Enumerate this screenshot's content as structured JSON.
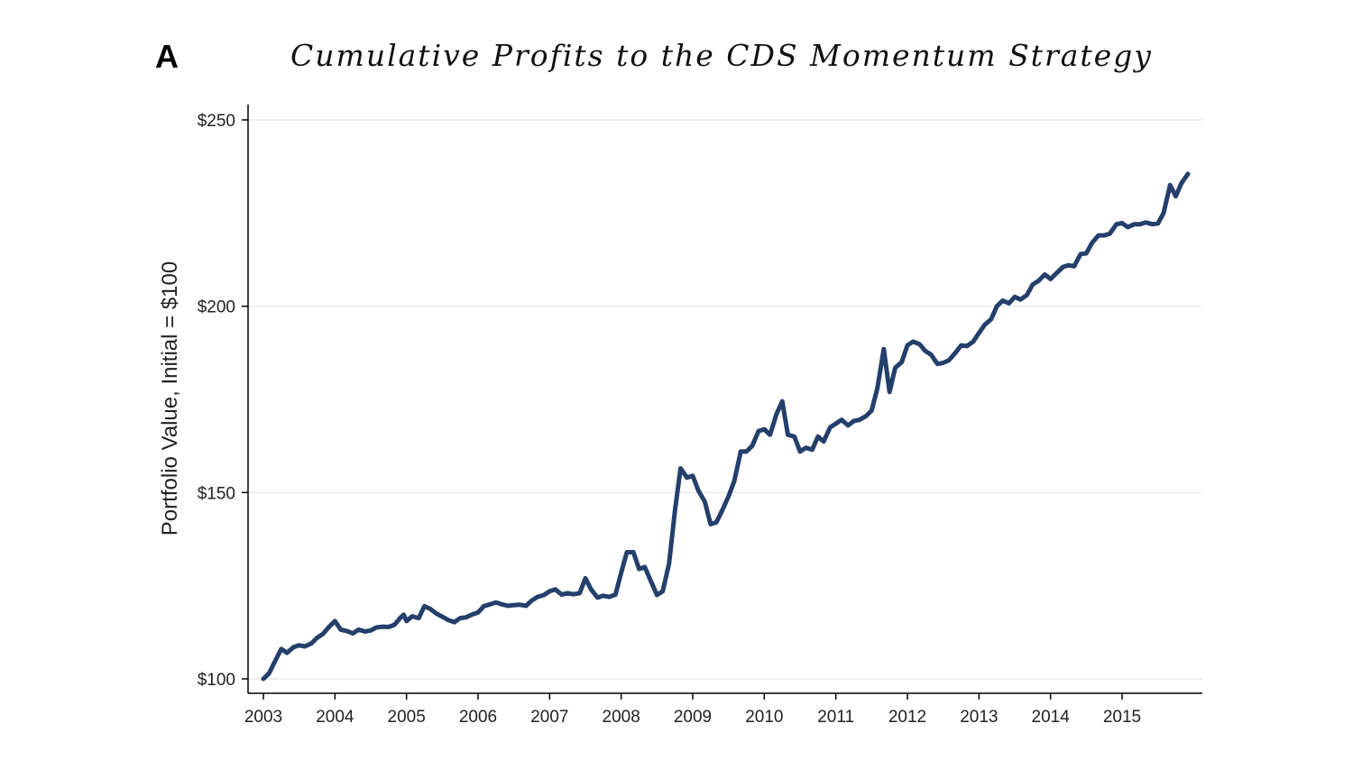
{
  "panel_letter": "A",
  "chart_data": {
    "type": "line",
    "title": "Cumulative Profits to the CDS Momentum Strategy",
    "xlabel": "",
    "ylabel": "Portfolio Value, Initial = $100",
    "xlim": [
      2003,
      2016.15
    ],
    "ylim": [
      96,
      254
    ],
    "x_ticks": [
      {
        "value": 2003,
        "label": "2003"
      },
      {
        "value": 2004,
        "label": "2004"
      },
      {
        "value": 2005,
        "label": "2005"
      },
      {
        "value": 2006,
        "label": "2006"
      },
      {
        "value": 2007,
        "label": "2007"
      },
      {
        "value": 2008,
        "label": "2008"
      },
      {
        "value": 2009,
        "label": "2009"
      },
      {
        "value": 2010,
        "label": "2010"
      },
      {
        "value": 2011,
        "label": "2011"
      },
      {
        "value": 2012,
        "label": "2012"
      },
      {
        "value": 2013,
        "label": "2013"
      },
      {
        "value": 2014,
        "label": "2014"
      },
      {
        "value": 2015,
        "label": "2015"
      }
    ],
    "y_ticks": [
      {
        "value": 100,
        "label": "$100"
      },
      {
        "value": 150,
        "label": "$150"
      },
      {
        "value": 200,
        "label": "$200"
      },
      {
        "value": 250,
        "label": "$250"
      }
    ],
    "grid": "horizontal",
    "line_color": "#243f6b",
    "series": [
      {
        "name": "",
        "points": [
          [
            2003.0,
            100
          ],
          [
            2003.08,
            101.5
          ],
          [
            2003.17,
            105
          ],
          [
            2003.25,
            108
          ],
          [
            2003.33,
            107
          ],
          [
            2003.42,
            108.5
          ],
          [
            2003.5,
            109
          ],
          [
            2003.58,
            108.7
          ],
          [
            2003.67,
            109.5
          ],
          [
            2003.75,
            111
          ],
          [
            2003.83,
            112
          ],
          [
            2003.92,
            114
          ],
          [
            2004.0,
            115.5
          ],
          [
            2004.08,
            113.2
          ],
          [
            2004.17,
            112.8
          ],
          [
            2004.25,
            112.2
          ],
          [
            2004.33,
            113.2
          ],
          [
            2004.42,
            112.7
          ],
          [
            2004.5,
            113
          ],
          [
            2004.58,
            113.8
          ],
          [
            2004.67,
            114
          ],
          [
            2004.75,
            113.9
          ],
          [
            2004.83,
            114.5
          ],
          [
            2004.92,
            116.5
          ],
          [
            2004.96,
            117.2
          ],
          [
            2005.0,
            115.5
          ],
          [
            2005.08,
            116.8
          ],
          [
            2005.17,
            116.3
          ],
          [
            2005.25,
            119.5
          ],
          [
            2005.33,
            118.8
          ],
          [
            2005.42,
            117.5
          ],
          [
            2005.5,
            116.7
          ],
          [
            2005.58,
            115.8
          ],
          [
            2005.67,
            115.2
          ],
          [
            2005.75,
            116.3
          ],
          [
            2005.83,
            116.5
          ],
          [
            2005.92,
            117.3
          ],
          [
            2006.0,
            117.8
          ],
          [
            2006.08,
            119.5
          ],
          [
            2006.17,
            120
          ],
          [
            2006.25,
            120.5
          ],
          [
            2006.33,
            120
          ],
          [
            2006.42,
            119.6
          ],
          [
            2006.5,
            119.8
          ],
          [
            2006.58,
            119.9
          ],
          [
            2006.67,
            119.6
          ],
          [
            2006.75,
            121
          ],
          [
            2006.83,
            122
          ],
          [
            2006.92,
            122.5
          ],
          [
            2007.0,
            123.5
          ],
          [
            2007.08,
            124
          ],
          [
            2007.17,
            122.6
          ],
          [
            2007.25,
            123
          ],
          [
            2007.33,
            122.7
          ],
          [
            2007.42,
            123
          ],
          [
            2007.5,
            127
          ],
          [
            2007.58,
            124
          ],
          [
            2007.67,
            121.8
          ],
          [
            2007.75,
            122.3
          ],
          [
            2007.83,
            122
          ],
          [
            2007.92,
            122.6
          ],
          [
            2008.0,
            128.5
          ],
          [
            2008.08,
            134
          ],
          [
            2008.17,
            134
          ],
          [
            2008.25,
            129.5
          ],
          [
            2008.33,
            130
          ],
          [
            2008.42,
            126
          ],
          [
            2008.5,
            122.5
          ],
          [
            2008.58,
            123.5
          ],
          [
            2008.67,
            131
          ],
          [
            2008.75,
            145
          ],
          [
            2008.83,
            156.5
          ],
          [
            2008.92,
            154
          ],
          [
            2009.0,
            154.5
          ],
          [
            2009.08,
            150.5
          ],
          [
            2009.17,
            147.5
          ],
          [
            2009.25,
            141.5
          ],
          [
            2009.33,
            142
          ],
          [
            2009.42,
            145.5
          ],
          [
            2009.5,
            149
          ],
          [
            2009.58,
            153
          ],
          [
            2009.67,
            161
          ],
          [
            2009.75,
            161
          ],
          [
            2009.83,
            162.5
          ],
          [
            2009.92,
            166.5
          ],
          [
            2010.0,
            167
          ],
          [
            2010.08,
            165.5
          ],
          [
            2010.17,
            171
          ],
          [
            2010.25,
            174.5
          ],
          [
            2010.33,
            165.5
          ],
          [
            2010.42,
            165
          ],
          [
            2010.5,
            161
          ],
          [
            2010.58,
            162
          ],
          [
            2010.67,
            161.5
          ],
          [
            2010.75,
            165
          ],
          [
            2010.83,
            163.7
          ],
          [
            2010.92,
            167.5
          ],
          [
            2011.0,
            168.5
          ],
          [
            2011.08,
            169.5
          ],
          [
            2011.17,
            168
          ],
          [
            2011.25,
            169.2
          ],
          [
            2011.33,
            169.5
          ],
          [
            2011.42,
            170.5
          ],
          [
            2011.5,
            172
          ],
          [
            2011.58,
            178
          ],
          [
            2011.67,
            188.5
          ],
          [
            2011.75,
            177
          ],
          [
            2011.83,
            183.5
          ],
          [
            2011.92,
            185
          ],
          [
            2012.0,
            189.5
          ],
          [
            2012.08,
            190.5
          ],
          [
            2012.17,
            189.8
          ],
          [
            2012.25,
            188
          ],
          [
            2012.33,
            187
          ],
          [
            2012.42,
            184.5
          ],
          [
            2012.5,
            184.8
          ],
          [
            2012.58,
            185.5
          ],
          [
            2012.67,
            187.5
          ],
          [
            2012.75,
            189.5
          ],
          [
            2012.83,
            189.3
          ],
          [
            2012.92,
            190.5
          ],
          [
            2013.0,
            192.8
          ],
          [
            2013.08,
            195
          ],
          [
            2013.17,
            196.5
          ],
          [
            2013.25,
            200
          ],
          [
            2013.33,
            201.5
          ],
          [
            2013.42,
            200.8
          ],
          [
            2013.5,
            202.5
          ],
          [
            2013.58,
            201.8
          ],
          [
            2013.67,
            203
          ],
          [
            2013.75,
            205.8
          ],
          [
            2013.83,
            206.8
          ],
          [
            2013.92,
            208.5
          ],
          [
            2014.0,
            207.3
          ],
          [
            2014.08,
            208.8
          ],
          [
            2014.17,
            210.5
          ],
          [
            2014.25,
            211
          ],
          [
            2014.33,
            210.7
          ],
          [
            2014.42,
            214
          ],
          [
            2014.5,
            214.2
          ],
          [
            2014.58,
            217
          ],
          [
            2014.67,
            219
          ],
          [
            2014.75,
            219
          ],
          [
            2014.83,
            219.5
          ],
          [
            2014.92,
            222
          ],
          [
            2015.0,
            222.3
          ],
          [
            2015.08,
            221.2
          ],
          [
            2015.17,
            222
          ],
          [
            2015.25,
            222
          ],
          [
            2015.33,
            222.5
          ],
          [
            2015.42,
            222
          ],
          [
            2015.5,
            222.2
          ],
          [
            2015.58,
            225
          ],
          [
            2015.67,
            232.5
          ],
          [
            2015.75,
            229.5
          ],
          [
            2015.83,
            233
          ],
          [
            2015.92,
            235.5
          ]
        ]
      }
    ]
  }
}
